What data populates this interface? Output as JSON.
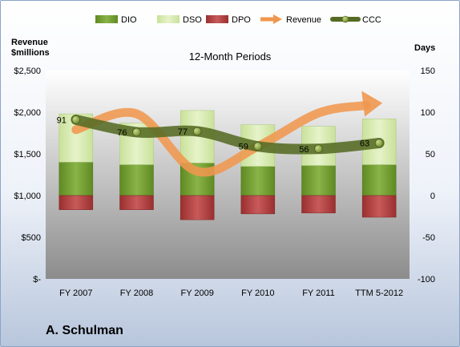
{
  "company": "A. Schulman",
  "chart_data": {
    "type": "bar",
    "title": "12-Month Periods",
    "y_left_label": [
      "Revenue",
      "$millions"
    ],
    "y_right_label": "Days",
    "categories": [
      "FY 2007",
      "FY 2008",
      "FY 2009",
      "FY 2010",
      "FY 2011",
      "TTM 5-2012"
    ],
    "left_ticks": [
      "$-",
      "$500",
      "$1,000",
      "$1,500",
      "$2,000",
      "$2,500"
    ],
    "right_ticks": [
      "-100",
      "-50",
      "0",
      "50",
      "100",
      "150"
    ],
    "ylim_left": [
      0,
      2500
    ],
    "ylim_right": [
      -100,
      150
    ],
    "grid": false,
    "legend_position": "top",
    "legend": [
      {
        "name": "DIO",
        "kind": "bar",
        "color": "#7ea53a"
      },
      {
        "name": "DSO",
        "kind": "bar",
        "color": "#d9ecb1"
      },
      {
        "name": "DPO",
        "kind": "bar",
        "color": "#b94545"
      },
      {
        "name": "Revenue",
        "kind": "arrow",
        "color": "#f0974f"
      },
      {
        "name": "CCC",
        "kind": "line",
        "color": "#556b23"
      }
    ],
    "series": [
      {
        "name": "DIO",
        "axis": "right",
        "values": [
          40,
          37,
          39,
          35,
          36,
          37
        ]
      },
      {
        "name": "DSO",
        "axis": "right",
        "values": [
          58,
          50,
          63,
          50,
          47,
          55
        ]
      },
      {
        "name": "DPO",
        "axis": "right",
        "values": [
          -17,
          -17,
          -29,
          -22,
          -21,
          -26
        ]
      },
      {
        "name": "Revenue",
        "axis": "left",
        "values": [
          1790,
          1980,
          1290,
          1590,
          1990,
          2110
        ]
      },
      {
        "name": "CCC",
        "axis": "right",
        "values": [
          91,
          76,
          77,
          59,
          56,
          63
        ]
      }
    ],
    "ccc_labels": [
      "91",
      "76",
      "77",
      "59",
      "56",
      "63"
    ]
  }
}
